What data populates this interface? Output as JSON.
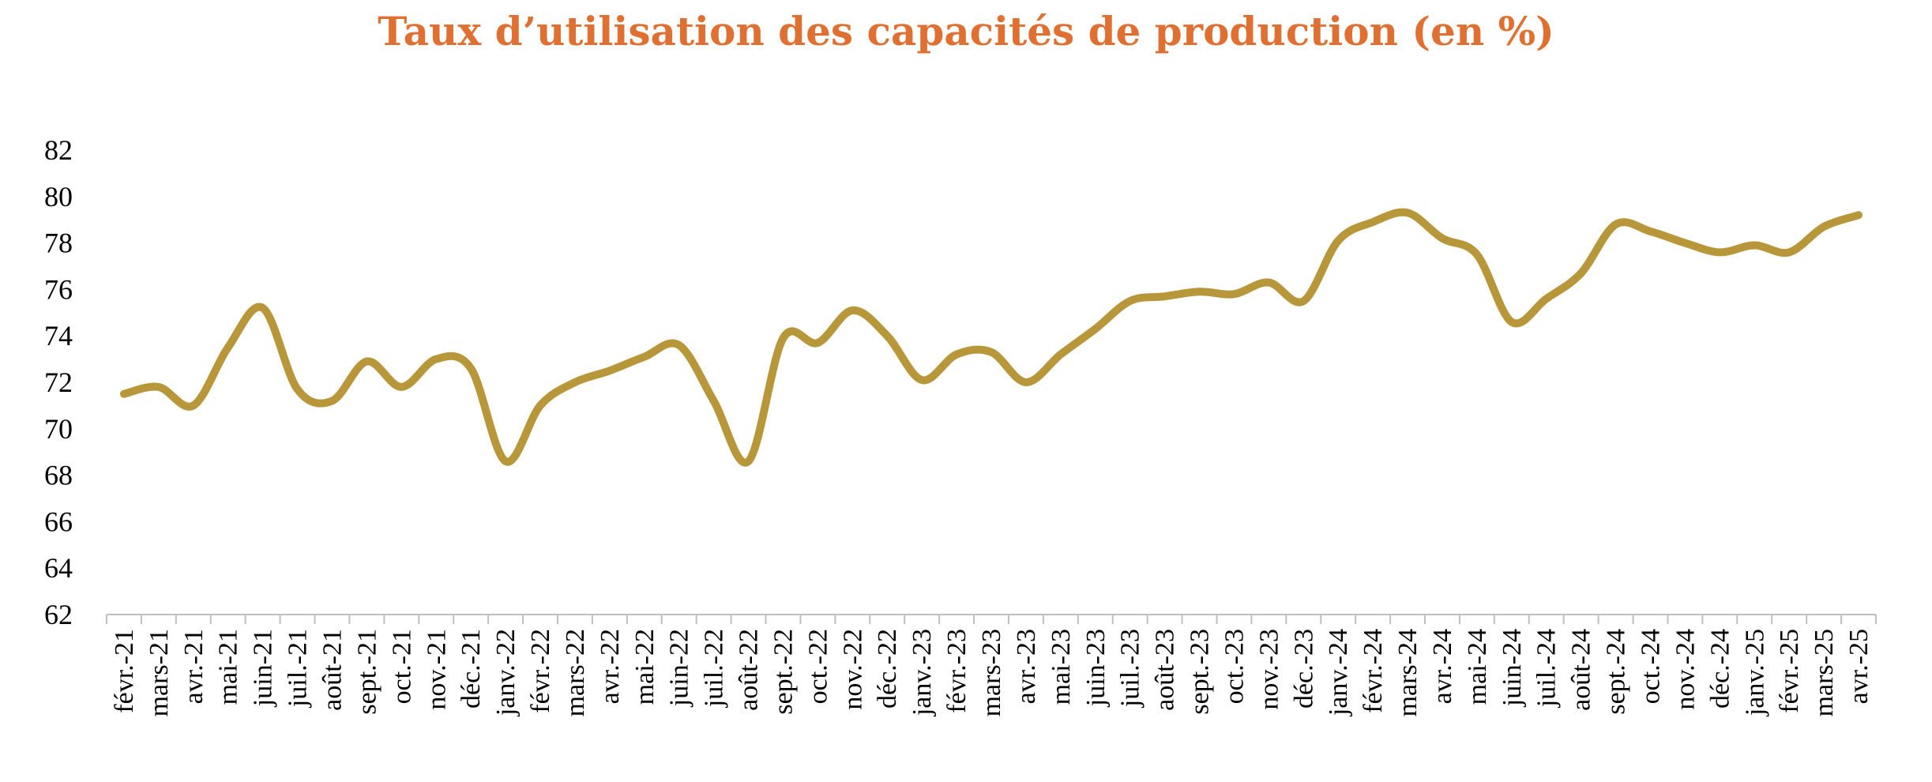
{
  "chart_data": {
    "type": "line",
    "title": "Taux d’utilisation des capacités de production (en %)",
    "xlabel": "",
    "ylabel": "",
    "ylim": [
      62,
      82
    ],
    "yticks": [
      "62",
      "64",
      "66",
      "68",
      "70",
      "72",
      "74",
      "76",
      "78",
      "80",
      "82"
    ],
    "grid": false,
    "legend": "none",
    "line_color": "#B8963A",
    "title_color": "#E07032",
    "categories": [
      "févr.-21",
      "mars-21",
      "avr.-21",
      "mai-21",
      "juin-21",
      "juil.-21",
      "août-21",
      "sept.-21",
      "oct.-21",
      "nov.-21",
      "déc.-21",
      "janv.-22",
      "févr.-22",
      "mars-22",
      "avr.-22",
      "mai-22",
      "juin-22",
      "juil.-22",
      "août-22",
      "sept.-22",
      "oct.-22",
      "nov.-22",
      "déc.-22",
      "janv.-23",
      "févr.-23",
      "mars-23",
      "avr.-23",
      "mai-23",
      "juin-23",
      "juil.-23",
      "août-23",
      "sept.-23",
      "oct.-23",
      "nov.-23",
      "déc.-23",
      "janv.-24",
      "févr.-24",
      "mars-24",
      "avr.-24",
      "mai-24",
      "juin-24",
      "juil.-24",
      "août-24",
      "sept.-24",
      "oct.-24",
      "nov.-24",
      "déc.-24",
      "janv.-25",
      "févr.-25",
      "mars-25",
      "avr.-25"
    ],
    "series": [
      {
        "values": [
          71.5,
          71.8,
          71.0,
          73.5,
          75.2,
          71.7,
          71.2,
          72.9,
          71.8,
          73.0,
          72.6,
          68.6,
          71.0,
          72.0,
          72.5,
          73.1,
          73.6,
          71.2,
          68.6,
          73.9,
          73.7,
          75.1,
          74.0,
          72.1,
          73.2,
          73.3,
          72.0,
          73.2,
          74.3,
          75.5,
          75.7,
          75.9,
          75.8,
          76.3,
          75.5,
          78.1,
          78.9,
          79.3,
          78.2,
          77.5,
          74.6,
          75.6,
          76.7,
          78.8,
          78.5,
          78.0,
          77.6,
          77.9,
          77.6,
          78.7,
          79.2
        ]
      }
    ]
  }
}
